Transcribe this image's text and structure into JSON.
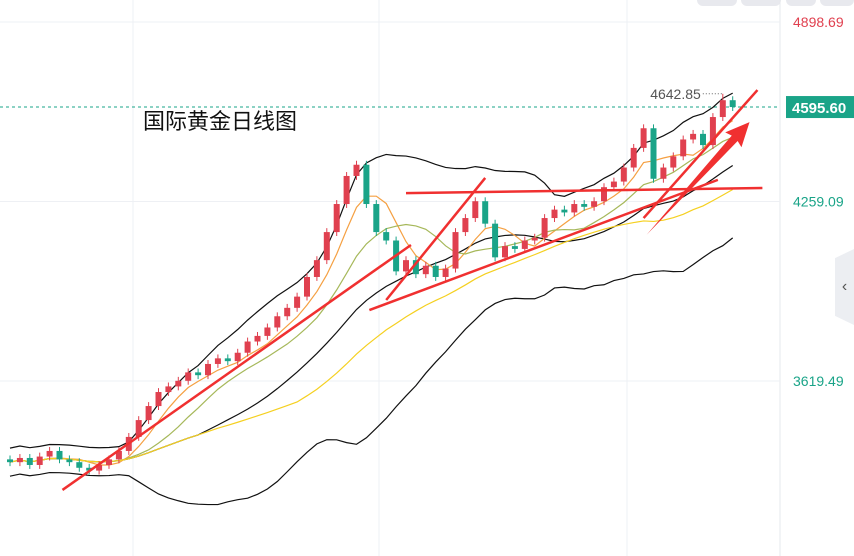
{
  "title": "国际黄金日线图",
  "colors": {
    "up": "#e0404f",
    "down": "#1aa488",
    "upper_label": "#e0404f",
    "axis_label": "#1aa488",
    "last_price_bg": "#1aa488",
    "trendline": "#f03030",
    "band": "#111111",
    "ma_fast": "#f5a042",
    "ma_mid": "#a6b85a",
    "ma_slow": "#f5d020"
  },
  "chart_data": {
    "type": "candlestick",
    "title": "国际黄金日线图",
    "y_ticks": [
      {
        "value": 4898.69,
        "label": "4898.69",
        "color": "#e0404f"
      },
      {
        "value": 4259.09,
        "label": "4259.09",
        "color": "#1aa488"
      },
      {
        "value": 3619.49,
        "label": "3619.49",
        "color": "#1aa488"
      }
    ],
    "ylim": [
      3100,
      4960
    ],
    "last_price": {
      "value": 4595.6,
      "label": "4595.60"
    },
    "high_marker": {
      "value": 4642.85,
      "label": "4642.85",
      "index": 72
    },
    "open": [
      3340,
      3330,
      3345,
      3320,
      3350,
      3370,
      3340,
      3330,
      3310,
      3300,
      3320,
      3340,
      3370,
      3420,
      3480,
      3530,
      3580,
      3600,
      3620,
      3650,
      3640,
      3680,
      3700,
      3690,
      3720,
      3760,
      3780,
      3810,
      3850,
      3880,
      3920,
      3990,
      4050,
      4150,
      4250,
      4350,
      4390,
      4250,
      4150,
      4120,
      4010,
      4050,
      4000,
      4030,
      3990,
      4020,
      4150,
      4200,
      4260,
      4180,
      4060,
      4100,
      4090,
      4120,
      4130,
      4200,
      4230,
      4220,
      4250,
      4240,
      4260,
      4310,
      4330,
      4380,
      4450,
      4520,
      4340,
      4380,
      4420,
      4480,
      4500,
      4460,
      4560,
      4620
    ],
    "close": [
      3330,
      3345,
      3320,
      3350,
      3370,
      3340,
      3330,
      3310,
      3300,
      3320,
      3340,
      3370,
      3420,
      3480,
      3530,
      3580,
      3600,
      3620,
      3650,
      3640,
      3680,
      3700,
      3690,
      3720,
      3760,
      3780,
      3810,
      3850,
      3880,
      3920,
      3990,
      4050,
      4150,
      4250,
      4350,
      4390,
      4250,
      4150,
      4120,
      4010,
      4050,
      4000,
      4030,
      3990,
      4020,
      4150,
      4200,
      4260,
      4180,
      4060,
      4100,
      4090,
      4120,
      4130,
      4200,
      4230,
      4220,
      4250,
      4240,
      4260,
      4310,
      4330,
      4380,
      4450,
      4520,
      4340,
      4380,
      4420,
      4480,
      4500,
      4460,
      4560,
      4620,
      4595.6
    ],
    "indicators": [
      "bollinger-upper",
      "bollinger-middle",
      "bollinger-lower",
      "ma-fast",
      "ma-mid",
      "ma-slow"
    ],
    "trendlines": [
      {
        "from": [
          5.3,
          3231
        ],
        "to": [
          40.5,
          4104
        ]
      },
      {
        "from": [
          38,
          3908
        ],
        "to": [
          48,
          4343
        ]
      },
      {
        "from": [
          36.3,
          3872
        ],
        "to": [
          71.5,
          4336
        ]
      },
      {
        "from": [
          40,
          4289
        ],
        "to": [
          76,
          4307
        ]
      },
      {
        "from": [
          64,
          4200
        ],
        "to": [
          75.5,
          4656
        ]
      }
    ],
    "arrow": {
      "from": [
        64.3,
        4140
      ],
      "to": [
        74.7,
        4542
      ]
    },
    "grid": true
  }
}
